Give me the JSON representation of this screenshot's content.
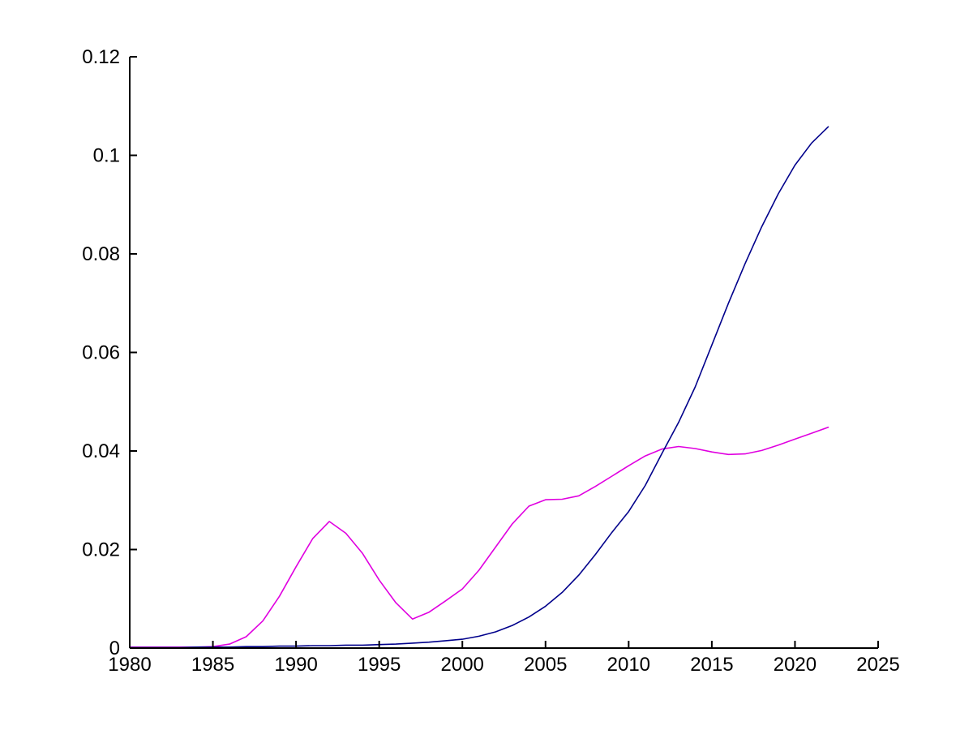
{
  "figure": {
    "background_color": "#ffffff",
    "axis_color": "#000000",
    "tick_label_color": "#000000",
    "tick_direction": "in",
    "box": "off",
    "grid": false,
    "legend": "none"
  },
  "chart_data": {
    "type": "line",
    "title": "",
    "xlabel": "",
    "ylabel": "",
    "xlim": [
      1980,
      2025
    ],
    "ylim": [
      0,
      0.12
    ],
    "x_tick_values": [
      1980,
      1985,
      1990,
      1995,
      2000,
      2005,
      2010,
      2015,
      2020,
      2025
    ],
    "x_tick_labels": [
      "1980",
      "1985",
      "1990",
      "1995",
      "2000",
      "2005",
      "2010",
      "2015",
      "2020",
      "2025"
    ],
    "y_tick_values": [
      0,
      0.02,
      0.04,
      0.06,
      0.08,
      0.1,
      0.12
    ],
    "y_tick_labels": [
      "0",
      "0.02",
      "0.04",
      "0.06",
      "0.08",
      "0.1",
      "0.12"
    ],
    "x": [
      1980,
      1981,
      1982,
      1983,
      1984,
      1985,
      1986,
      1987,
      1988,
      1989,
      1990,
      1991,
      1992,
      1993,
      1994,
      1995,
      1996,
      1997,
      1998,
      1999,
      2000,
      2001,
      2002,
      2003,
      2004,
      2005,
      2006,
      2007,
      2008,
      2009,
      2010,
      2011,
      2012,
      2013,
      2014,
      2015,
      2016,
      2017,
      2018,
      2019,
      2020,
      2021,
      2022
    ],
    "series": [
      {
        "name": "magenta-line",
        "color": "#e000e0",
        "values": [
          0.0002,
          0.0002,
          0.0002,
          0.0002,
          0.0002,
          0.0003,
          0.0008,
          0.0023,
          0.0055,
          0.0105,
          0.0165,
          0.0222,
          0.0257,
          0.0233,
          0.0192,
          0.0138,
          0.0092,
          0.0059,
          0.0073,
          0.0096,
          0.012,
          0.0158,
          0.0205,
          0.0252,
          0.0288,
          0.0301,
          0.0302,
          0.0309,
          0.0328,
          0.0349,
          0.037,
          0.039,
          0.0404,
          0.0409,
          0.0405,
          0.0398,
          0.0393,
          0.0394,
          0.0401,
          0.0412,
          0.0424,
          0.0436,
          0.0448
        ]
      },
      {
        "name": "dark-blue-line",
        "color": "#00008b",
        "values": [
          0.0001,
          0.0001,
          0.0001,
          0.0001,
          0.0002,
          0.0002,
          0.0002,
          0.0003,
          0.0003,
          0.0004,
          0.0004,
          0.0005,
          0.0005,
          0.0006,
          0.0006,
          0.0007,
          0.0008,
          0.001,
          0.0012,
          0.0015,
          0.0018,
          0.0024,
          0.0033,
          0.0046,
          0.0063,
          0.0085,
          0.0113,
          0.0148,
          0.019,
          0.0235,
          0.0277,
          0.033,
          0.0395,
          0.0458,
          0.053,
          0.0615,
          0.07,
          0.078,
          0.0855,
          0.0922,
          0.098,
          0.1025,
          0.1058
        ]
      }
    ]
  }
}
